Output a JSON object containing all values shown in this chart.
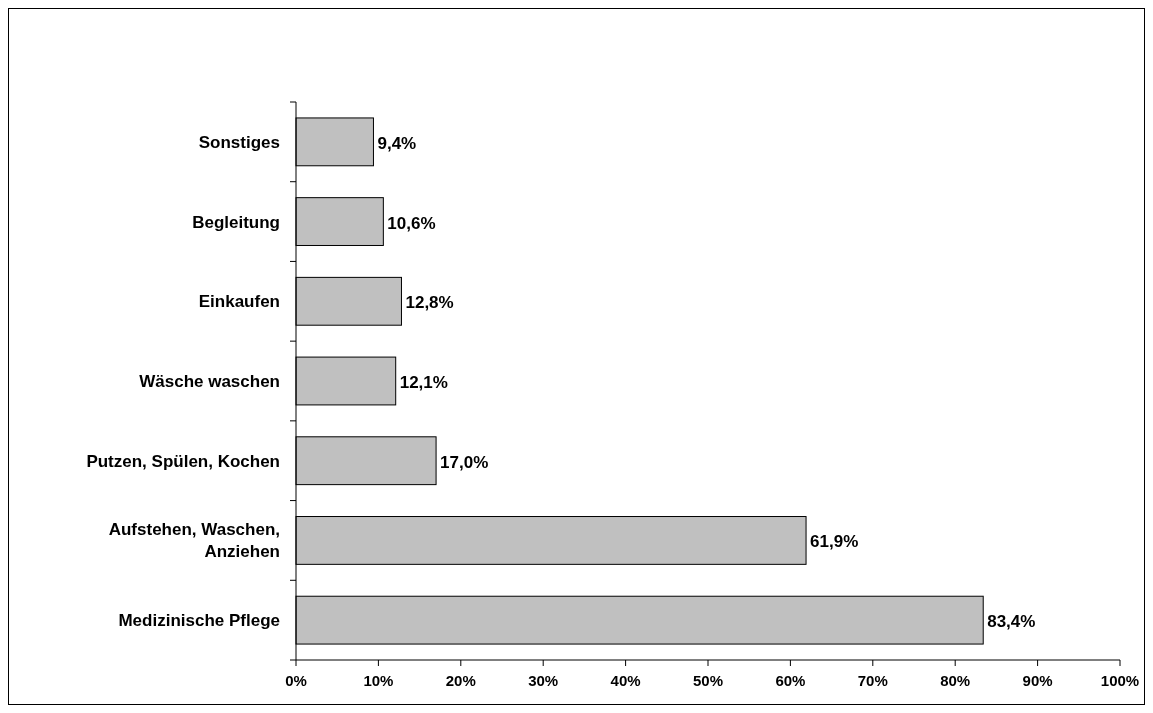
{
  "chart_data": {
    "type": "bar",
    "orientation": "horizontal",
    "categories": [
      "Sonstiges",
      "Begleitung",
      "Einkaufen",
      "Wäsche waschen",
      "Putzen, Spülen, Kochen",
      "Aufstehen, Waschen, Anziehen",
      "Medizinische Pflege"
    ],
    "values": [
      9.4,
      10.6,
      12.8,
      12.1,
      17.0,
      61.9,
      83.4
    ],
    "value_labels": [
      "9,4%",
      "10,6%",
      "12,8%",
      "12,1%",
      "17,0%",
      "61,9%",
      "83,4%"
    ],
    "color": "#c0c0c0",
    "xlim": [
      0,
      100
    ],
    "xticks": [
      {
        "value": 0,
        "label": "0%"
      },
      {
        "value": 10,
        "label": "10%"
      },
      {
        "value": 20,
        "label": "20%"
      },
      {
        "value": 30,
        "label": "30%"
      },
      {
        "value": 40,
        "label": "40%"
      },
      {
        "value": 50,
        "label": "50%"
      },
      {
        "value": 60,
        "label": "60%"
      },
      {
        "value": 70,
        "label": "70%"
      },
      {
        "value": 80,
        "label": "80%"
      },
      {
        "value": 90,
        "label": "90%"
      },
      {
        "value": 100,
        "label": "100%"
      }
    ],
    "grid": false
  }
}
